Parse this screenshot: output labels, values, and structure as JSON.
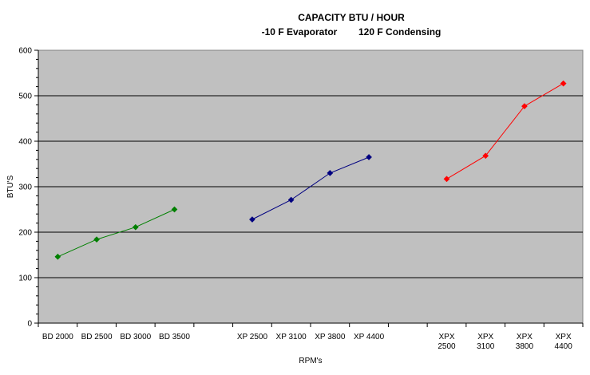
{
  "chart_data": {
    "type": "line",
    "title": "CAPACITY BTU / HOUR",
    "subtitle": "-10 F Evaporator        120 F Condensing",
    "xlabel": "RPM's",
    "ylabel": "BTU'S",
    "ylim": [
      0,
      600
    ],
    "yticks": [
      0,
      100,
      200,
      300,
      400,
      500,
      600
    ],
    "grid": true,
    "categories": [
      [
        "BD 2000"
      ],
      [
        "BD 2500"
      ],
      [
        "BD 3000"
      ],
      [
        "BD 3500"
      ],
      [
        ""
      ],
      [
        "XP 2500"
      ],
      [
        "XP 3100"
      ],
      [
        "XP 3800"
      ],
      [
        "XP 4400"
      ],
      [
        ""
      ],
      [
        "XPX",
        "2500"
      ],
      [
        "XPX",
        "3100"
      ],
      [
        "XPX",
        "3800"
      ],
      [
        "XPX",
        "4400"
      ]
    ],
    "series": [
      {
        "color": "#008000",
        "values": [
          146,
          184,
          211,
          250,
          null,
          null,
          null,
          null,
          null,
          null,
          null,
          null,
          null,
          null
        ]
      },
      {
        "color": "#000080",
        "values": [
          null,
          null,
          null,
          null,
          null,
          228,
          271,
          330,
          365,
          null,
          null,
          null,
          null,
          null
        ]
      },
      {
        "color": "#ff0000",
        "values": [
          null,
          null,
          null,
          null,
          null,
          null,
          null,
          null,
          null,
          null,
          317,
          368,
          477,
          527
        ]
      }
    ]
  }
}
